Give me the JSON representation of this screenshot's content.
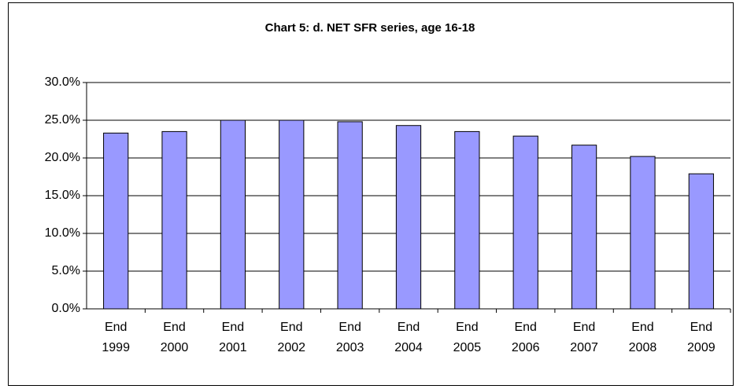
{
  "chart_data": {
    "type": "bar",
    "title": "Chart  5: d. NET SFR series, age 16-18",
    "categories": [
      "End 1999",
      "End 2000",
      "End 2001",
      "End 2002",
      "End 2003",
      "End 2004",
      "End 2005",
      "End 2006",
      "End 2007",
      "End 2008",
      "End 2009"
    ],
    "values": [
      23.3,
      23.5,
      25.0,
      25.0,
      24.8,
      24.3,
      23.5,
      22.9,
      21.7,
      20.2,
      17.9
    ],
    "color": "#9999ff",
    "ylim": [
      0,
      30
    ],
    "yticks": [
      {
        "value": 0,
        "label": "0.0%"
      },
      {
        "value": 5,
        "label": "5.0%"
      },
      {
        "value": 10,
        "label": "10.0%"
      },
      {
        "value": 15,
        "label": "15.0%"
      },
      {
        "value": 20,
        "label": "20.0%"
      },
      {
        "value": 25,
        "label": "25.0%"
      },
      {
        "value": 30,
        "label": "30.0%"
      }
    ],
    "grid": true
  }
}
